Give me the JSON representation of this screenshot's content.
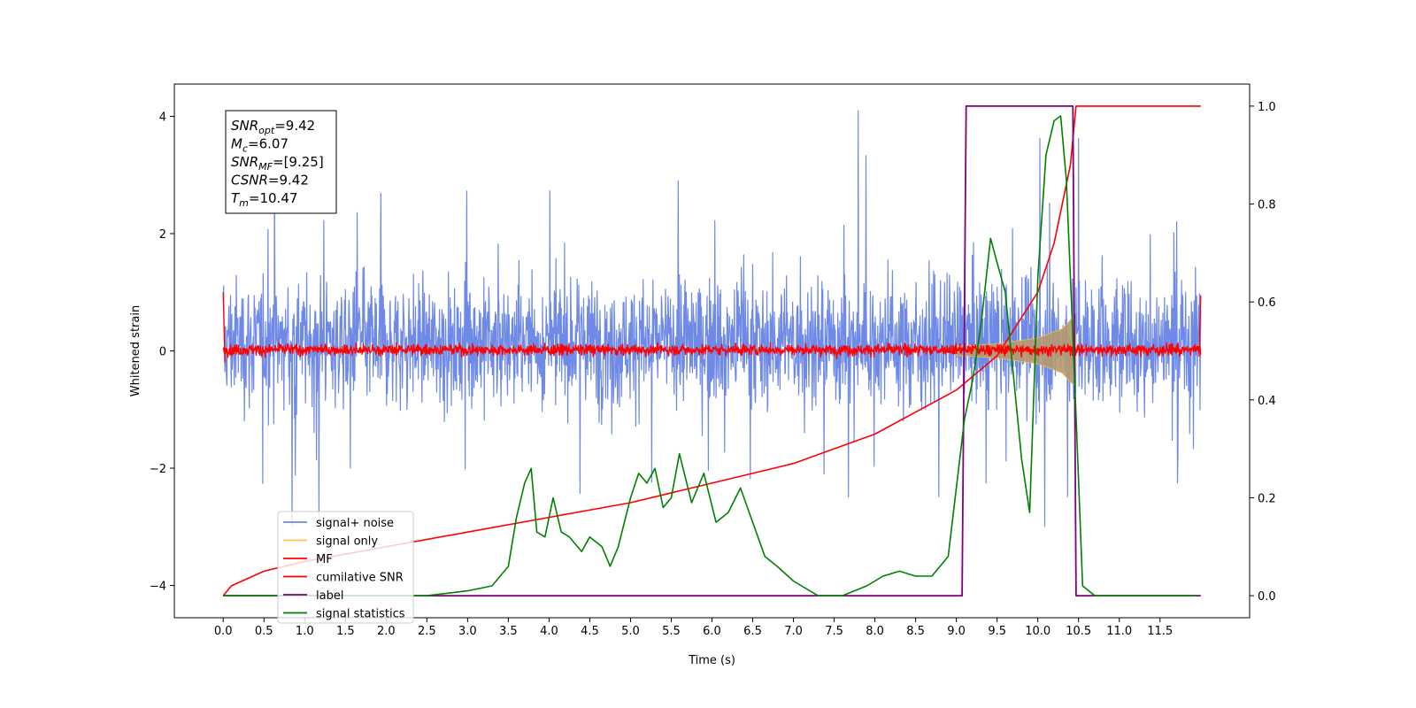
{
  "chart_data": {
    "type": "line",
    "xlabel": "Time (s)",
    "ylabel": "Whitened strain",
    "xlim": [
      -0.6,
      12.6
    ],
    "ylim": [
      -4.55,
      4.55
    ],
    "y2lim": [
      -0.045,
      1.045
    ],
    "x_ticks": [
      "0.0",
      "0.5",
      "1.0",
      "1.5",
      "2.0",
      "2.5",
      "3.0",
      "3.5",
      "4.0",
      "4.5",
      "5.0",
      "5.5",
      "6.0",
      "6.5",
      "7.0",
      "7.5",
      "8.0",
      "8.5",
      "9.0",
      "9.5",
      "10.0",
      "10.5",
      "11.0",
      "11.5"
    ],
    "y_ticks": [
      "4",
      "2",
      "0",
      "−2",
      "−4"
    ],
    "y2_ticks": [
      "1.0",
      "0.8",
      "0.6",
      "0.4",
      "0.2",
      "0.0"
    ],
    "grid": false,
    "legend_position": "lower-left",
    "colors": {
      "signal_noise": "#6f8ae6",
      "signal_only": "#ffc04d",
      "signal_fill": "#b59a6e",
      "mf": "#ff0000",
      "cumulative_snr": "#ff0000",
      "label": "#800080",
      "signal_statistics": "#008000"
    },
    "series": [
      {
        "name": "signal+ noise",
        "axis": "left",
        "kind": "noise",
        "x_range": [
          0.0,
          12.0
        ],
        "range": [
          -1.5,
          1.8
        ],
        "spike_max": 4.1,
        "spike_min": -3.0
      },
      {
        "name": "signal only",
        "axis": "left",
        "kind": "chirp",
        "x": [
          9.0,
          9.5,
          10.0,
          10.3,
          10.45,
          10.47
        ],
        "envelope": [
          0.08,
          0.12,
          0.22,
          0.38,
          0.6,
          0.0
        ]
      },
      {
        "name": "MF",
        "axis": "left",
        "kind": "noise-small",
        "x_range": [
          0.0,
          12.0
        ],
        "range": [
          -0.15,
          0.25
        ]
      },
      {
        "name": "cumilative SNR",
        "axis": "right",
        "x": [
          0.0,
          0.1,
          0.5,
          1.0,
          2.0,
          3.0,
          4.0,
          5.0,
          6.0,
          7.0,
          8.0,
          9.0,
          9.5,
          10.0,
          10.2,
          10.4,
          10.47,
          12.0
        ],
        "y": [
          0.0,
          0.02,
          0.05,
          0.07,
          0.1,
          0.13,
          0.16,
          0.19,
          0.23,
          0.27,
          0.33,
          0.42,
          0.49,
          0.62,
          0.72,
          0.88,
          1.0,
          1.0
        ]
      },
      {
        "name": "label",
        "axis": "right",
        "x": [
          0.0,
          9.07,
          9.12,
          10.43,
          10.47,
          12.0
        ],
        "y": [
          0.0,
          0.0,
          1.0,
          1.0,
          0.0,
          0.0
        ]
      },
      {
        "name": "signal statistics",
        "axis": "right",
        "x": [
          0.0,
          0.5,
          1.0,
          1.5,
          2.0,
          2.5,
          3.0,
          3.3,
          3.5,
          3.6,
          3.7,
          3.78,
          3.85,
          3.95,
          4.05,
          4.15,
          4.25,
          4.4,
          4.5,
          4.65,
          4.75,
          4.85,
          5.0,
          5.1,
          5.2,
          5.3,
          5.4,
          5.5,
          5.6,
          5.75,
          5.9,
          6.05,
          6.2,
          6.35,
          6.5,
          6.65,
          6.8,
          7.0,
          7.3,
          7.6,
          7.9,
          8.1,
          8.3,
          8.5,
          8.7,
          8.9,
          9.0,
          9.1,
          9.2,
          9.3,
          9.42,
          9.5,
          9.6,
          9.7,
          9.8,
          9.9,
          10.0,
          10.1,
          10.2,
          10.28,
          10.35,
          10.45,
          10.55,
          10.7,
          11.0,
          11.5,
          11.95
        ],
        "y": [
          0.0,
          0.0,
          0.0,
          0.0,
          0.0,
          0.0,
          0.01,
          0.02,
          0.06,
          0.16,
          0.23,
          0.26,
          0.13,
          0.12,
          0.2,
          0.13,
          0.12,
          0.09,
          0.12,
          0.1,
          0.06,
          0.1,
          0.2,
          0.25,
          0.23,
          0.26,
          0.18,
          0.2,
          0.29,
          0.19,
          0.25,
          0.15,
          0.17,
          0.22,
          0.15,
          0.08,
          0.06,
          0.03,
          0.0,
          0.0,
          0.02,
          0.04,
          0.05,
          0.04,
          0.04,
          0.08,
          0.22,
          0.36,
          0.44,
          0.55,
          0.73,
          0.68,
          0.62,
          0.45,
          0.28,
          0.17,
          0.65,
          0.9,
          0.97,
          0.98,
          0.85,
          0.45,
          0.02,
          0.0,
          0.0,
          0.0,
          0.0
        ]
      }
    ],
    "stats": [
      {
        "name": "SNR",
        "sub": "opt",
        "val": "=9.42"
      },
      {
        "name": "M",
        "sub": "c",
        "val": "=6.07"
      },
      {
        "name": "SNR",
        "sub": "MF",
        "val": "=[9.25]"
      },
      {
        "name": "CSNR",
        "sub": "",
        "val": "=9.42"
      },
      {
        "name": "T",
        "sub": "m",
        "val": "=10.47"
      }
    ],
    "legend": [
      {
        "label": "signal+ noise",
        "color": "#6f8ae6"
      },
      {
        "label": "signal only",
        "color": "#ffc04d"
      },
      {
        "label": "MF",
        "color": "#ff0000"
      },
      {
        "label": "cumilative SNR",
        "color": "#ff0000"
      },
      {
        "label": "label",
        "color": "#800080"
      },
      {
        "label": "signal statistics",
        "color": "#008000"
      }
    ]
  }
}
